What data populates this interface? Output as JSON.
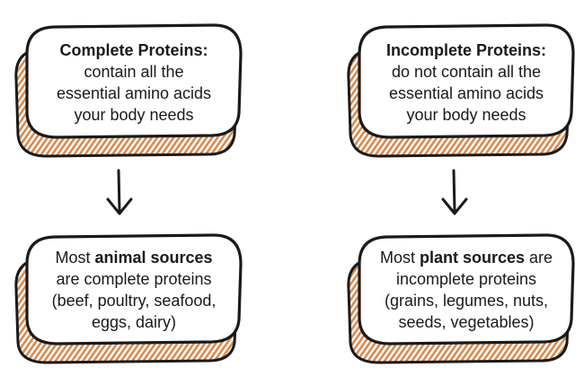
{
  "colors": {
    "outline": "#1a1a1a",
    "hatch": "#d98a4e",
    "text": "#1a1a1a",
    "background": "#ffffff"
  },
  "left": {
    "top_box": {
      "title": "Complete Proteins:",
      "lines": [
        "contain all the",
        "essential amino acids",
        "your body needs"
      ]
    },
    "bottom_box": {
      "line1_prefix": "Most ",
      "line1_bold": "animal sources",
      "line1_suffix": "",
      "lines": [
        "are complete proteins",
        "(beef, poultry, seafood,",
        "eggs, dairy)"
      ]
    }
  },
  "right": {
    "top_box": {
      "title": "Incomplete Proteins:",
      "lines": [
        "do not contain all the",
        "essential amino acids",
        "your body needs"
      ]
    },
    "bottom_box": {
      "line1_prefix": "Most ",
      "line1_bold": "plant sources",
      "line1_suffix": " are",
      "lines": [
        "incomplete proteins",
        "(grains, legumes, nuts,",
        "seeds, vegetables)"
      ]
    }
  }
}
